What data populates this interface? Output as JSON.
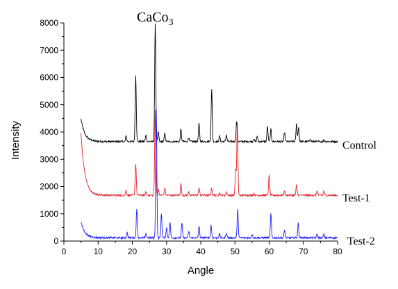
{
  "chart_data": {
    "type": "line",
    "title": "",
    "xlabel": "Angle",
    "ylabel": "Intensity",
    "xlim": [
      0,
      80
    ],
    "ylim": [
      0,
      8000
    ],
    "x_ticks": [
      "0",
      "10",
      "20",
      "30",
      "40",
      "50",
      "60",
      "70",
      "80"
    ],
    "y_ticks": [
      "0",
      "1000",
      "2000",
      "3000",
      "4000",
      "5000",
      "6000",
      "7000",
      "8000"
    ],
    "annotation": {
      "text": "CaCo",
      "subscript": "3"
    },
    "grid": false,
    "colors": {
      "Control": "#000000",
      "Test-1": "#e8202a",
      "Test-2": "#1a1aff"
    },
    "series": [
      {
        "name": "Control",
        "baseline": 3650,
        "start": [
          5,
          4480
        ],
        "peaks": [
          [
            18.2,
            3850
          ],
          [
            21.0,
            6100
          ],
          [
            24.0,
            3900
          ],
          [
            26.7,
            8000
          ],
          [
            27.6,
            4000
          ],
          [
            29.5,
            3950
          ],
          [
            34.2,
            4100
          ],
          [
            36.5,
            3800
          ],
          [
            39.5,
            4300
          ],
          [
            43.2,
            5550
          ],
          [
            45.5,
            3850
          ],
          [
            47.5,
            3900
          ],
          [
            50.5,
            4400
          ],
          [
            55.5,
            3750
          ],
          [
            56.5,
            3850
          ],
          [
            59.5,
            4200
          ],
          [
            60.5,
            4100
          ],
          [
            64.5,
            4000
          ],
          [
            68.0,
            4300
          ],
          [
            68.6,
            4200
          ],
          [
            72.0,
            3750
          ],
          [
            76.0,
            3700
          ]
        ]
      },
      {
        "name": "Test-1",
        "baseline": 1680,
        "start": [
          5,
          3950
        ],
        "peaks": [
          [
            18.2,
            1850
          ],
          [
            21.0,
            2850
          ],
          [
            24.0,
            1800
          ],
          [
            26.7,
            4800
          ],
          [
            27.6,
            1900
          ],
          [
            29.5,
            1950
          ],
          [
            34.2,
            2100
          ],
          [
            36.5,
            1800
          ],
          [
            39.5,
            1950
          ],
          [
            43.2,
            1950
          ],
          [
            45.5,
            1750
          ],
          [
            47.5,
            1800
          ],
          [
            50.2,
            2650
          ],
          [
            50.7,
            4350
          ],
          [
            55.5,
            1750
          ],
          [
            60.0,
            2400
          ],
          [
            64.5,
            1850
          ],
          [
            68.0,
            2050
          ],
          [
            74.0,
            1850
          ],
          [
            76.0,
            1850
          ]
        ]
      },
      {
        "name": "Test-2",
        "baseline": 120,
        "start": [
          5,
          700
        ],
        "peaks": [
          [
            18.5,
            300
          ],
          [
            21.3,
            1150
          ],
          [
            24.0,
            250
          ],
          [
            27.0,
            4850
          ],
          [
            28.5,
            1000
          ],
          [
            30.0,
            500
          ],
          [
            31.0,
            700
          ],
          [
            34.5,
            650
          ],
          [
            36.5,
            350
          ],
          [
            39.5,
            550
          ],
          [
            43.0,
            600
          ],
          [
            45.5,
            250
          ],
          [
            47.5,
            300
          ],
          [
            50.8,
            1150
          ],
          [
            55.0,
            250
          ],
          [
            60.5,
            1000
          ],
          [
            64.5,
            400
          ],
          [
            68.5,
            650
          ],
          [
            74.0,
            250
          ],
          [
            76.0,
            250
          ]
        ]
      }
    ]
  }
}
